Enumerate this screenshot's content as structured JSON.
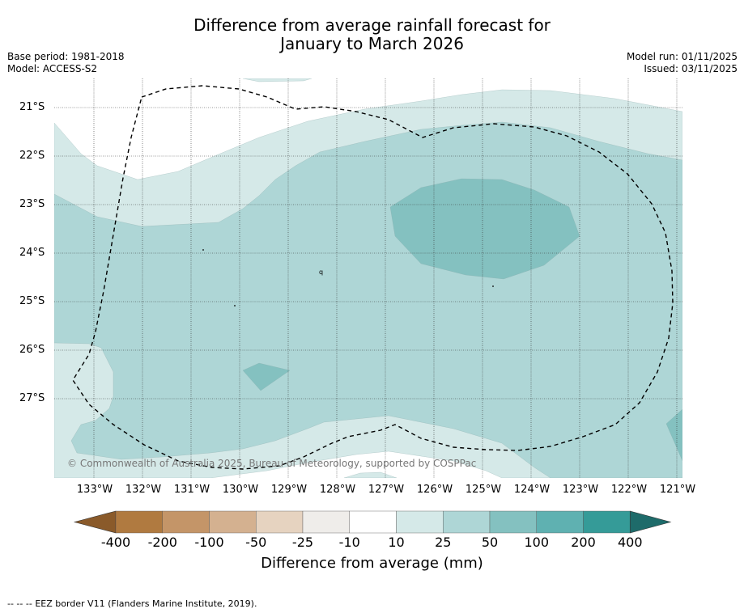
{
  "title_line1": "Difference from average rainfall forecast for",
  "title_line2": "January to March 2026",
  "meta_left": {
    "base_period": "Base period: 1981-2018",
    "model": "Model: ACCESS-S2"
  },
  "meta_right": {
    "model_run": "Model run: 01/11/2025",
    "issued": "Issued: 03/11/2025"
  },
  "lat_labels": [
    "21°S",
    "22°S",
    "23°S",
    "24°S",
    "25°S",
    "26°S",
    "27°S"
  ],
  "lon_labels": [
    "133°W",
    "132°W",
    "131°W",
    "130°W",
    "129°W",
    "128°W",
    "127°W",
    "126°W",
    "125°W",
    "124°W",
    "123°W",
    "122°W",
    "121°W"
  ],
  "copyright": "© Commonwealth of Australia 2025, Bureau of Meteorology, supported by COSPPac",
  "colorbar": {
    "ticks": [
      "-400",
      "-200",
      "-100",
      "-50",
      "-25",
      "-10",
      "10",
      "25",
      "50",
      "100",
      "200",
      "400"
    ],
    "colors": [
      "#8a5a2a",
      "#b07a40",
      "#c49568",
      "#d4b190",
      "#e6d3c0",
      "#efedea",
      "#ffffff",
      "#d5e9e8",
      "#aed6d6",
      "#84c1c0",
      "#5fb1b1",
      "#359b98",
      "#1e6b6a"
    ],
    "label": "Difference from average (mm)"
  },
  "legend": {
    "eez_symbol": "-- -- --",
    "eez_text": "EEZ border V11 (Flanders Marine Institute, 2019)."
  },
  "map_colors": {
    "c10_25": "#d5e9e8",
    "c25_50": "#aed6d6",
    "c50_100": "#84c1c0"
  }
}
